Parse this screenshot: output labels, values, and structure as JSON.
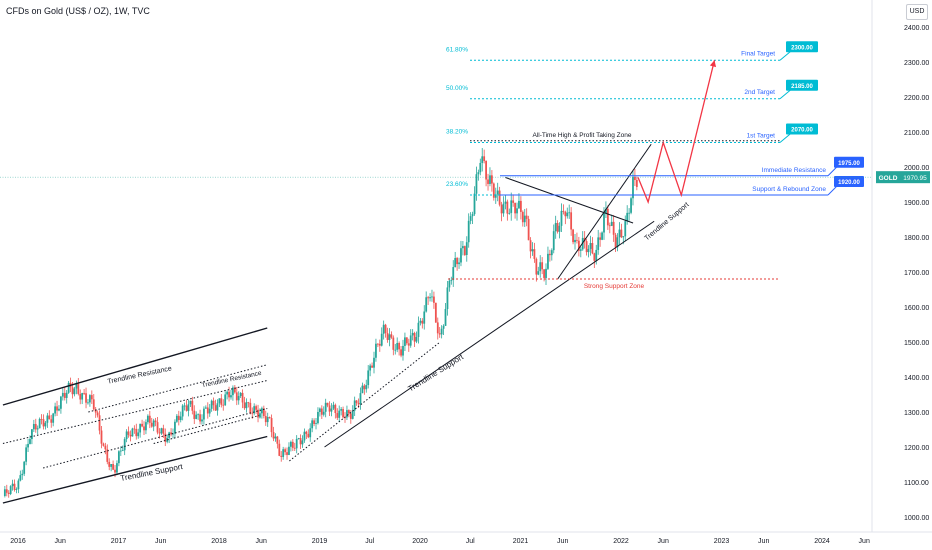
{
  "header": {
    "title": "CFDs on Gold (US$ / OZ), 1W, TVC"
  },
  "currency_label": "USD",
  "colors": {
    "up": "#26a69a",
    "down": "#ef5350",
    "fib": "#00bcd4",
    "resistance": "#2962ff",
    "support": "#e53935",
    "projection": "#f23645",
    "trend": "#131722"
  },
  "chart_data": {
    "type": "candlestick",
    "title": "CFDs on Gold (US$ / OZ), 1W, TVC",
    "symbol": "GOLD",
    "last_price": "1970.95",
    "y_axis": {
      "min": 1000,
      "max": 2400,
      "ticks": [
        "2400.00",
        "2300.00",
        "2200.00",
        "2100.00",
        "2000.00",
        "1900.00",
        "1800.00",
        "1700.00",
        "1600.00",
        "1500.00",
        "1400.00",
        "1300.00",
        "1200.00",
        "1100.00",
        "1000.00"
      ]
    },
    "x_axis": {
      "ticks": [
        {
          "label": "2016",
          "t": 2016.0
        },
        {
          "label": "Jun",
          "t": 2016.42
        },
        {
          "label": "2017",
          "t": 2017.0
        },
        {
          "label": "Jun",
          "t": 2017.42
        },
        {
          "label": "2018",
          "t": 2018.0
        },
        {
          "label": "Jun",
          "t": 2018.42
        },
        {
          "label": "2019",
          "t": 2019.0
        },
        {
          "label": "Jul",
          "t": 2019.5
        },
        {
          "label": "2020",
          "t": 2020.0
        },
        {
          "label": "Jul",
          "t": 2020.5
        },
        {
          "label": "2021",
          "t": 2021.0
        },
        {
          "label": "Jun",
          "t": 2021.42
        },
        {
          "label": "2022",
          "t": 2022.0
        },
        {
          "label": "Jun",
          "t": 2022.42
        },
        {
          "label": "2023",
          "t": 2023.0
        },
        {
          "label": "Jun",
          "t": 2023.42
        },
        {
          "label": "2024",
          "t": 2024.0
        },
        {
          "label": "Jun",
          "t": 2024.42
        }
      ]
    },
    "price_anchors": [
      [
        2015.85,
        1060
      ],
      [
        2016.0,
        1090
      ],
      [
        2016.12,
        1240
      ],
      [
        2016.3,
        1280
      ],
      [
        2016.5,
        1360
      ],
      [
        2016.58,
        1370
      ],
      [
        2016.75,
        1320
      ],
      [
        2016.85,
        1200
      ],
      [
        2016.95,
        1130
      ],
      [
        2017.1,
        1240
      ],
      [
        2017.3,
        1270
      ],
      [
        2017.5,
        1230
      ],
      [
        2017.7,
        1330
      ],
      [
        2017.8,
        1280
      ],
      [
        2018.0,
        1330
      ],
      [
        2018.1,
        1355
      ],
      [
        2018.3,
        1320
      ],
      [
        2018.5,
        1270
      ],
      [
        2018.62,
        1180
      ],
      [
        2018.75,
        1200
      ],
      [
        2019.0,
        1290
      ],
      [
        2019.1,
        1320
      ],
      [
        2019.3,
        1280
      ],
      [
        2019.5,
        1420
      ],
      [
        2019.65,
        1540
      ],
      [
        2019.8,
        1470
      ],
      [
        2019.95,
        1520
      ],
      [
        2020.1,
        1640
      ],
      [
        2020.2,
        1500
      ],
      [
        2020.3,
        1700
      ],
      [
        2020.45,
        1760
      ],
      [
        2020.6,
        2040
      ],
      [
        2020.68,
        1950
      ],
      [
        2020.8,
        1900
      ],
      [
        2020.95,
        1880
      ],
      [
        2021.05,
        1850
      ],
      [
        2021.15,
        1720
      ],
      [
        2021.25,
        1690
      ],
      [
        2021.35,
        1830
      ],
      [
        2021.45,
        1890
      ],
      [
        2021.55,
        1760
      ],
      [
        2021.65,
        1790
      ],
      [
        2021.75,
        1750
      ],
      [
        2021.85,
        1860
      ],
      [
        2021.95,
        1800
      ],
      [
        2022.05,
        1830
      ],
      [
        2022.12,
        1940
      ],
      [
        2022.17,
        1970
      ]
    ],
    "fib_levels": [
      {
        "label": "61.80%",
        "price": 2305
      },
      {
        "label": "50.00%",
        "price": 2195
      },
      {
        "label": "38.20%",
        "price": 2070
      },
      {
        "label": "23.60%",
        "price": 1920
      }
    ],
    "target_flags": [
      {
        "label": "Final Target",
        "value": "2300.00",
        "price": 2305
      },
      {
        "label": "2nd Target",
        "value": "2185.00",
        "price": 2195
      },
      {
        "label": "1st Target",
        "value": "2070.00",
        "price": 2070
      }
    ],
    "horizontal_levels": [
      {
        "label": "Immediate Resistance",
        "value": "1975.00",
        "price": 1975
      },
      {
        "label": "Support & Rebound Zone",
        "value": "1920.00",
        "price": 1920
      }
    ],
    "annotations": {
      "ath_zone": "All-Time High & Profit Taking Zone",
      "strong_support": "Strong Support Zone",
      "trendline_resistance_1": "Trendline Resistance",
      "trendline_resistance_2": "Trendline Resistance",
      "trendline_support_1": "Trendline Support",
      "trendline_support_2": "Trendline Support",
      "trendline_support_3": "Trendline Support"
    },
    "strong_support_price": 1680,
    "ath_price": 2075,
    "projection_path": [
      [
        2022.17,
        1970
      ],
      [
        2022.27,
        1900
      ],
      [
        2022.42,
        2070
      ],
      [
        2022.6,
        1920
      ],
      [
        2022.93,
        2305
      ]
    ],
    "trend_lines": [
      {
        "name": "channel-top",
        "from": [
          2015.85,
          1320
        ],
        "to": [
          2018.48,
          1540
        ]
      },
      {
        "name": "channel-bottom",
        "from": [
          2015.85,
          1040
        ],
        "to": [
          2018.48,
          1230
        ]
      },
      {
        "name": "inner-top-dotted",
        "from": [
          2015.85,
          1210
        ],
        "to": [
          2018.48,
          1390
        ]
      },
      {
        "name": "inner-bottom-dotted",
        "from": [
          2016.25,
          1140
        ],
        "to": [
          2018.48,
          1310
        ]
      },
      {
        "name": "mid-dotted-top",
        "from": [
          2016.7,
          1300
        ],
        "to": [
          2018.48,
          1435
        ]
      },
      {
        "name": "mid-dotted-bot",
        "from": [
          2017.35,
          1210
        ],
        "to": [
          2018.4,
          1290
        ]
      },
      {
        "name": "support-dotted-2019",
        "from": [
          2018.7,
          1160
        ],
        "to": [
          2020.2,
          1500
        ]
      },
      {
        "name": "support-2019-2022",
        "from": [
          2019.05,
          1200
        ],
        "to": [
          2022.33,
          1845
        ]
      },
      {
        "name": "support-2021-rising",
        "from": [
          2021.37,
          1680
        ],
        "to": [
          2022.3,
          2065
        ]
      },
      {
        "name": "wedge-top",
        "from": [
          2020.85,
          1970
        ],
        "to": [
          2022.12,
          1840
        ]
      }
    ]
  }
}
